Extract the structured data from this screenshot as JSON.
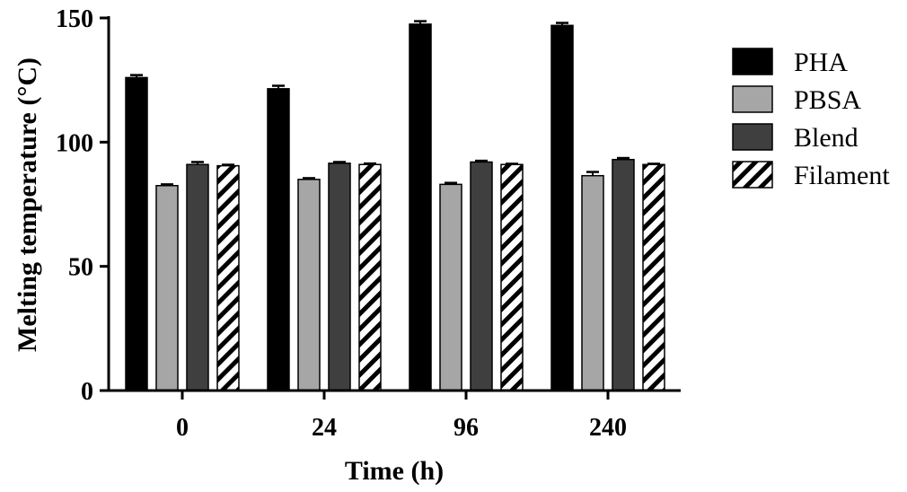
{
  "chart_data": {
    "type": "bar",
    "xlabel": "Time (h)",
    "ylabel": "Melting temperature (°C)",
    "ylim": [
      0,
      150
    ],
    "yticks": [
      "0",
      "50",
      "100",
      "150"
    ],
    "categories": [
      "0",
      "24",
      "96",
      "240"
    ],
    "series": [
      {
        "name": "PHA",
        "values": [
          126,
          121.5,
          147.5,
          147
        ],
        "errors": [
          1.0,
          1.2,
          1.2,
          1.0
        ],
        "color": "#000000",
        "pattern": "solid"
      },
      {
        "name": "PBSA",
        "values": [
          82.5,
          85,
          83,
          86.5
        ],
        "errors": [
          0.5,
          0.5,
          0.6,
          1.5
        ],
        "color": "#a6a6a6",
        "pattern": "solid"
      },
      {
        "name": "Blend",
        "values": [
          91,
          91.5,
          92,
          93
        ],
        "errors": [
          1.0,
          0.5,
          0.5,
          0.6
        ],
        "color": "#3f3f3f",
        "pattern": "solid"
      },
      {
        "name": "Filament",
        "values": [
          90.5,
          91,
          91,
          91
        ],
        "errors": [
          0.4,
          0.4,
          0.3,
          0.3
        ],
        "color": "#000000",
        "pattern": "diagonal-hatch"
      }
    ],
    "legend": "right",
    "grid": false
  }
}
